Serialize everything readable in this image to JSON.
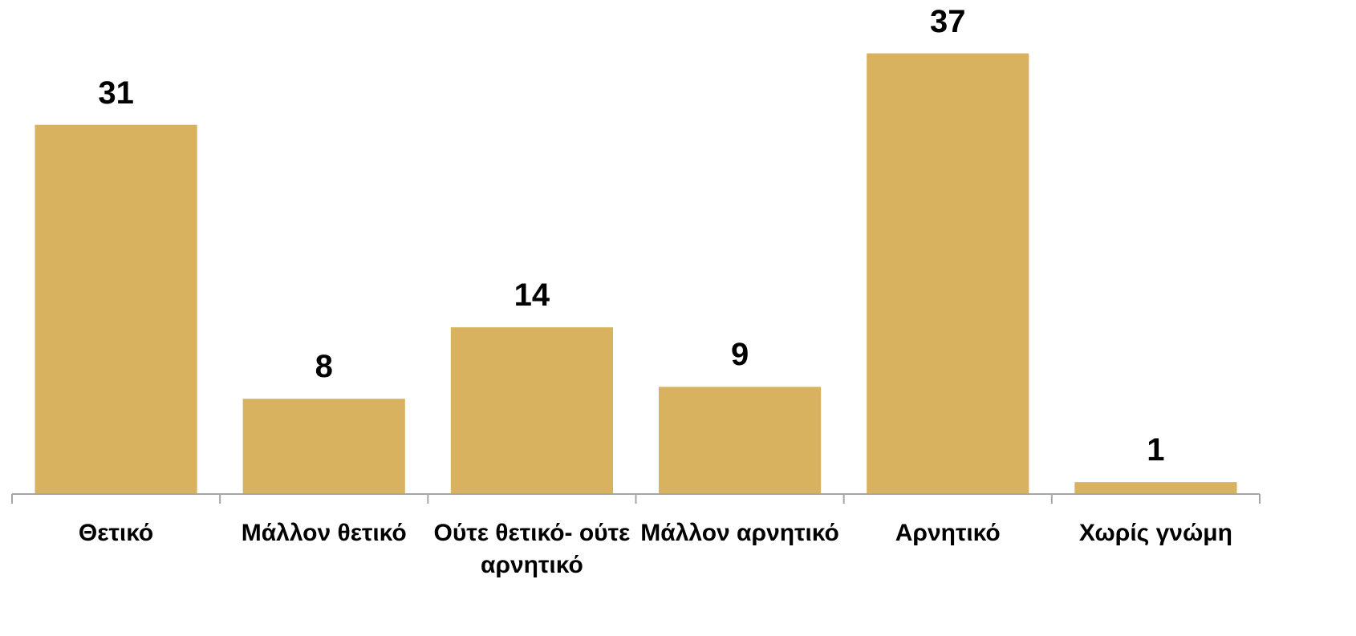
{
  "chart_data": {
    "type": "bar",
    "categories": [
      "Θετικό",
      "Μάλλον θετικό",
      "Ούτε θετικό- ούτε αρνητικό",
      "Μάλλον αρνητικό",
      "Αρνητικό",
      "Χωρίς γνώμη"
    ],
    "values": [
      31,
      8,
      14,
      9,
      37,
      1
    ],
    "color": "#d8b25e",
    "ylim": [
      0,
      40
    ]
  }
}
